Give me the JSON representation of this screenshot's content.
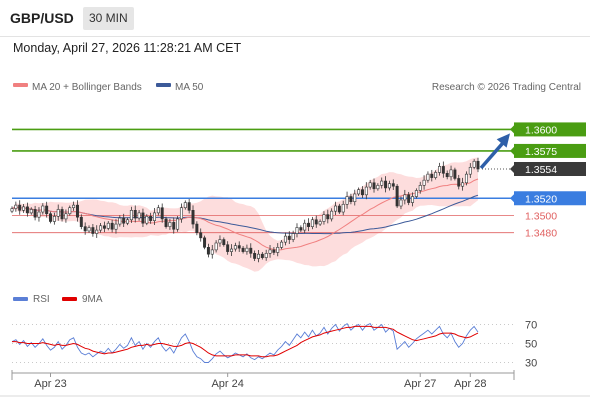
{
  "header": {
    "symbol": "GBP/USD",
    "timeframe": "30 MIN"
  },
  "timestamp": "Monday, April 27, 2026 11:28:21 AM CET",
  "copyright": "Research © 2026 Trading Central",
  "colors": {
    "ma20": "#f08080",
    "ma50": "#3c5a99",
    "band_fill": "#fdd9d9",
    "support_green": "#4a9d12",
    "pivot_blue": "#3a7de0",
    "resistance_red": "#e06060",
    "arrow": "#2e5fa8",
    "rsi": "#5b7fd6",
    "rsi_ma": "#e00000",
    "current_price": "#3a3a3a"
  },
  "chart_data": [
    {
      "type": "candlestick",
      "legend": [
        "MA 20 + Bollinger Bands",
        "MA 50"
      ],
      "x_ticks": [
        "Apr 23",
        "Apr 24",
        "Apr 27",
        "Apr 28"
      ],
      "ylim": [
        1.3425,
        1.364
      ],
      "levels": [
        {
          "value": 1.36,
          "label": "1.3600",
          "kind": "target"
        },
        {
          "value": 1.3575,
          "label": "1.3575",
          "kind": "target"
        },
        {
          "value": 1.3554,
          "label": "1.3554",
          "kind": "current"
        },
        {
          "value": 1.352,
          "label": "1.3520",
          "kind": "pivot"
        },
        {
          "value": 1.35,
          "label": "1.3500",
          "kind": "support"
        },
        {
          "value": 1.348,
          "label": "1.3480",
          "kind": "support"
        }
      ],
      "closes": [
        1.3508,
        1.3512,
        1.3506,
        1.351,
        1.3503,
        1.3507,
        1.3498,
        1.3504,
        1.3511,
        1.3502,
        1.3493,
        1.3499,
        1.3507,
        1.3496,
        1.3502,
        1.3509,
        1.3512,
        1.3498,
        1.3487,
        1.3482,
        1.3486,
        1.3479,
        1.3483,
        1.3488,
        1.3485,
        1.3491,
        1.3484,
        1.349,
        1.3497,
        1.3491,
        1.3495,
        1.3506,
        1.3497,
        1.3503,
        1.3491,
        1.3499,
        1.3494,
        1.3503,
        1.3509,
        1.3496,
        1.3487,
        1.3492,
        1.3484,
        1.3496,
        1.3509,
        1.3515,
        1.3506,
        1.349,
        1.348,
        1.3474,
        1.3463,
        1.3455,
        1.346,
        1.3468,
        1.3472,
        1.3466,
        1.3458,
        1.3461,
        1.3465,
        1.3462,
        1.3458,
        1.3462,
        1.3456,
        1.345,
        1.3455,
        1.3451,
        1.3456,
        1.346,
        1.3457,
        1.3463,
        1.3469,
        1.3476,
        1.3472,
        1.3479,
        1.3486,
        1.3483,
        1.3491,
        1.3487,
        1.3495,
        1.349,
        1.3493,
        1.3501,
        1.3496,
        1.3505,
        1.3511,
        1.3504,
        1.3513,
        1.3522,
        1.3516,
        1.3525,
        1.353,
        1.3524,
        1.3533,
        1.3538,
        1.3531,
        1.3535,
        1.354,
        1.3532,
        1.3537,
        1.3534,
        1.3511,
        1.3518,
        1.3524,
        1.3515,
        1.3522,
        1.3529,
        1.3535,
        1.3541,
        1.3548,
        1.3544,
        1.355,
        1.3557,
        1.3549,
        1.3545,
        1.3553,
        1.3543,
        1.3534,
        1.3538,
        1.3548,
        1.3556,
        1.3563,
        1.3554
      ]
    },
    {
      "type": "line",
      "legend": [
        "RSI",
        "9MA"
      ],
      "y_ticks": [
        70,
        50,
        30
      ],
      "ylim": [
        20,
        80
      ],
      "rsi": [
        52,
        54,
        49,
        53,
        47,
        51,
        46,
        50,
        55,
        48,
        43,
        46,
        52,
        44,
        48,
        54,
        56,
        46,
        40,
        38,
        40,
        36,
        39,
        42,
        40,
        45,
        40,
        44,
        49,
        45,
        48,
        56,
        48,
        52,
        44,
        50,
        46,
        52,
        56,
        47,
        42,
        46,
        40,
        48,
        56,
        60,
        52,
        42,
        36,
        34,
        30,
        30,
        34,
        39,
        42,
        38,
        35,
        37,
        40,
        38,
        36,
        39,
        35,
        33,
        36,
        34,
        37,
        40,
        38,
        43,
        47,
        52,
        48,
        54,
        60,
        56,
        62,
        57,
        64,
        58,
        61,
        67,
        60,
        66,
        70,
        63,
        68,
        71,
        64,
        68,
        70,
        64,
        69,
        71,
        64,
        67,
        70,
        62,
        66,
        63,
        44,
        48,
        52,
        46,
        50,
        55,
        58,
        61,
        64,
        60,
        64,
        68,
        60,
        56,
        61,
        52,
        46,
        50,
        58,
        64,
        68,
        62
      ],
      "rsi_ma": [
        52,
        52,
        51,
        51,
        50,
        50,
        50,
        50,
        51,
        50,
        49,
        48,
        49,
        48,
        48,
        49,
        50,
        49,
        47,
        45,
        44,
        42,
        41,
        40,
        39,
        40,
        40,
        41,
        42,
        43,
        44,
        46,
        47,
        48,
        48,
        49,
        48,
        49,
        50,
        50,
        49,
        48,
        47,
        47,
        48,
        50,
        51,
        50,
        48,
        46,
        43,
        40,
        38,
        37,
        37,
        37,
        37,
        37,
        38,
        38,
        38,
        38,
        37,
        37,
        37,
        36,
        36,
        37,
        37,
        38,
        40,
        42,
        44,
        46,
        48,
        51,
        53,
        55,
        57,
        58,
        59,
        61,
        62,
        63,
        64,
        65,
        66,
        67,
        67,
        68,
        68,
        68,
        68,
        68,
        67,
        67,
        67,
        67,
        66,
        65,
        62,
        60,
        58,
        56,
        54,
        53,
        54,
        55,
        56,
        57,
        58,
        60,
        61,
        61,
        61,
        60,
        58,
        57,
        56,
        57,
        59,
        61
      ]
    }
  ]
}
